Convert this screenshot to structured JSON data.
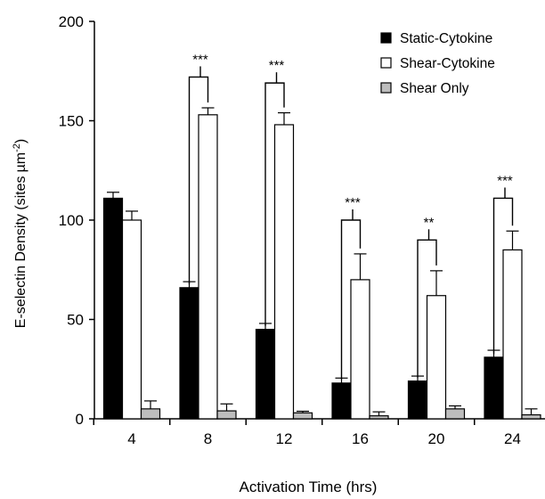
{
  "chart_data": {
    "type": "bar",
    "title": "",
    "xlabel": "Activation Time (hrs)",
    "ylabel_main": "E-selectin Density (sites",
    "ylabel_unit": "µm",
    "ylabel_exp": "-2",
    "ylabel_close": ")",
    "ylim": [
      0,
      200
    ],
    "yticks": [
      0,
      50,
      100,
      150,
      200
    ],
    "categories": [
      "4",
      "8",
      "12",
      "16",
      "20",
      "24"
    ],
    "series": [
      {
        "name": "Static-Cytokine",
        "color": "#000000",
        "values": [
          111,
          66,
          45,
          18,
          19,
          31
        ],
        "errors": [
          3,
          3,
          3,
          2.5,
          2.5,
          3.5
        ]
      },
      {
        "name": "Shear-Cytokine",
        "color": "#ffffff",
        "values": [
          100,
          153,
          148,
          70,
          62,
          85
        ],
        "errors": [
          4.5,
          3.5,
          6,
          13,
          12.5,
          9.5
        ]
      },
      {
        "name": "Shear Only",
        "color": "#bdbdbd",
        "values": [
          5,
          4,
          3,
          1.5,
          5,
          2
        ],
        "errors": [
          4,
          3.5,
          0.8,
          2,
          1.5,
          3
        ]
      }
    ],
    "significance": [
      {
        "category": "8",
        "label": "***",
        "level": 172
      },
      {
        "category": "12",
        "label": "***",
        "level": 169
      },
      {
        "category": "16",
        "label": "***",
        "level": 100
      },
      {
        "category": "20",
        "label": "**",
        "level": 90
      },
      {
        "category": "24",
        "label": "***",
        "level": 111
      }
    ],
    "grid": false,
    "legend_position": "top-right"
  }
}
